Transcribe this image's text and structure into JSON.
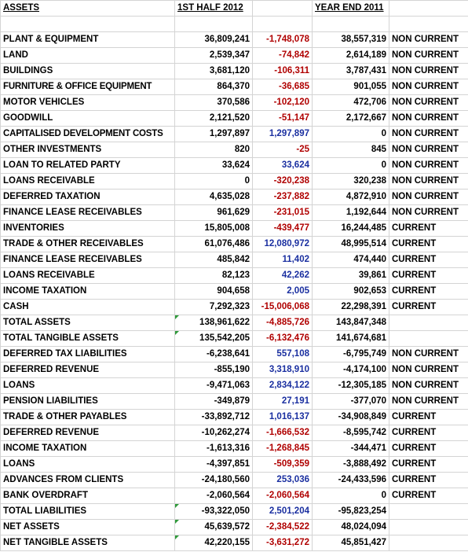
{
  "header": {
    "label": "ASSETS",
    "h1": "1ST HALF 2012",
    "change": "",
    "ye": "YEAR END 2011",
    "cls": ""
  },
  "rows": [
    {
      "label": "PLANT & EQUIPMENT",
      "h1": "36,809,241",
      "change": "-1,748,078",
      "ye": "38,557,319",
      "cls": "NON CURRENT",
      "tone": "neg"
    },
    {
      "label": "LAND",
      "h1": "2,539,347",
      "change": "-74,842",
      "ye": "2,614,189",
      "cls": "NON CURRENT",
      "tone": "neg"
    },
    {
      "label": "BUILDINGS",
      "h1": "3,681,120",
      "change": "-106,311",
      "ye": "3,787,431",
      "cls": "NON CURRENT",
      "tone": "neg"
    },
    {
      "label": "FURNITURE & OFFICE EQUIPMENT",
      "h1": "864,370",
      "change": "-36,685",
      "ye": "901,055",
      "cls": "NON CURRENT",
      "tone": "neg"
    },
    {
      "label": "MOTOR VEHICLES",
      "h1": "370,586",
      "change": "-102,120",
      "ye": "472,706",
      "cls": "NON CURRENT",
      "tone": "neg"
    },
    {
      "label": "GOODWILL",
      "h1": "2,121,520",
      "change": "-51,147",
      "ye": "2,172,667",
      "cls": "NON CURRENT",
      "tone": "neg"
    },
    {
      "label": "CAPITALISED DEVELOPMENT COSTS",
      "h1": "1,297,897",
      "change": "1,297,897",
      "ye": "0",
      "cls": "NON CURRENT",
      "tone": "pos"
    },
    {
      "label": "OTHER INVESTMENTS",
      "h1": "820",
      "change": "-25",
      "ye": "845",
      "cls": "NON CURRENT",
      "tone": "neg"
    },
    {
      "label": "LOAN TO RELATED PARTY",
      "h1": "33,624",
      "change": "33,624",
      "ye": "0",
      "cls": "NON CURRENT",
      "tone": "pos"
    },
    {
      "label": "LOANS RECEIVABLE",
      "h1": "0",
      "change": "-320,238",
      "ye": "320,238",
      "cls": "NON CURRENT",
      "tone": "neg"
    },
    {
      "label": "DEFERRED TAXATION",
      "h1": "4,635,028",
      "change": "-237,882",
      "ye": "4,872,910",
      "cls": "NON CURRENT",
      "tone": "neg"
    },
    {
      "label": "FINANCE LEASE RECEIVABLES",
      "h1": "961,629",
      "change": "-231,015",
      "ye": "1,192,644",
      "cls": "NON CURRENT",
      "tone": "neg"
    },
    {
      "label": "INVENTORIES",
      "h1": "15,805,008",
      "change": "-439,477",
      "ye": "16,244,485",
      "cls": "CURRENT",
      "tone": "neg"
    },
    {
      "label": "TRADE & OTHER RECEIVABLES",
      "h1": "61,076,486",
      "change": "12,080,972",
      "ye": "48,995,514",
      "cls": "CURRENT",
      "tone": "pos"
    },
    {
      "label": "FINANCE LEASE RECEIVABLES",
      "h1": "485,842",
      "change": "11,402",
      "ye": "474,440",
      "cls": "CURRENT",
      "tone": "pos"
    },
    {
      "label": "LOANS RECEIVABLE",
      "h1": "82,123",
      "change": "42,262",
      "ye": "39,861",
      "cls": "CURRENT",
      "tone": "pos"
    },
    {
      "label": "INCOME TAXATION",
      "h1": "904,658",
      "change": "2,005",
      "ye": "902,653",
      "cls": "CURRENT",
      "tone": "pos"
    },
    {
      "label": "CASH",
      "h1": "7,292,323",
      "change": "-15,006,068",
      "ye": "22,298,391",
      "cls": "CURRENT",
      "tone": "neg"
    },
    {
      "label": "TOTAL ASSETS",
      "h1": "138,961,622",
      "change": "-4,885,726",
      "ye": "143,847,348",
      "cls": "",
      "tone": "neg",
      "flag": true
    },
    {
      "label": "TOTAL TANGIBLE ASSETS",
      "h1": "135,542,205",
      "change": "-6,132,476",
      "ye": "141,674,681",
      "cls": "",
      "tone": "neg",
      "flag": true
    },
    {
      "label": "DEFERRED TAX LIABILITIES",
      "h1": "-6,238,641",
      "change": "557,108",
      "ye": "-6,795,749",
      "cls": "NON CURRENT",
      "tone": "pos"
    },
    {
      "label": "DEFERRED REVENUE",
      "h1": "-855,190",
      "change": "3,318,910",
      "ye": "-4,174,100",
      "cls": "NON CURRENT",
      "tone": "pos"
    },
    {
      "label": "LOANS",
      "h1": "-9,471,063",
      "change": "2,834,122",
      "ye": "-12,305,185",
      "cls": "NON CURRENT",
      "tone": "pos"
    },
    {
      "label": "PENSION LIABILITIES",
      "h1": "-349,879",
      "change": "27,191",
      "ye": "-377,070",
      "cls": "NON CURRENT",
      "tone": "pos"
    },
    {
      "label": "TRADE & OTHER PAYABLES",
      "h1": "-33,892,712",
      "change": "1,016,137",
      "ye": "-34,908,849",
      "cls": "CURRENT",
      "tone": "pos"
    },
    {
      "label": "DEFERRED REVENUE",
      "h1": "-10,262,274",
      "change": "-1,666,532",
      "ye": "-8,595,742",
      "cls": "CURRENT",
      "tone": "neg"
    },
    {
      "label": "INCOME TAXATION",
      "h1": "-1,613,316",
      "change": "-1,268,845",
      "ye": "-344,471",
      "cls": "CURRENT",
      "tone": "neg"
    },
    {
      "label": "LOANS",
      "h1": "-4,397,851",
      "change": "-509,359",
      "ye": "-3,888,492",
      "cls": "CURRENT",
      "tone": "neg"
    },
    {
      "label": "ADVANCES FROM CLIENTS",
      "h1": "-24,180,560",
      "change": "253,036",
      "ye": "-24,433,596",
      "cls": "CURRENT",
      "tone": "pos"
    },
    {
      "label": "BANK OVERDRAFT",
      "h1": "-2,060,564",
      "change": "-2,060,564",
      "ye": "0",
      "cls": "CURRENT",
      "tone": "neg"
    },
    {
      "label": "TOTAL LIABILITIES",
      "h1": "-93,322,050",
      "change": "2,501,204",
      "ye": "-95,823,254",
      "cls": "",
      "tone": "pos",
      "flag": true
    },
    {
      "label": "NET ASSETS",
      "h1": "45,639,572",
      "change": "-2,384,522",
      "ye": "48,024,094",
      "cls": "",
      "tone": "neg",
      "flag": true
    },
    {
      "label": "NET TANGIBLE ASSETS",
      "h1": "42,220,155",
      "change": "-3,631,272",
      "ye": "45,851,427",
      "cls": "",
      "tone": "neg",
      "flag": true
    }
  ],
  "colors": {
    "negative": "#b00000",
    "positive": "#1a2fa0",
    "gridline": "#d4d4d4",
    "error_indicator": "#2f9a3a"
  }
}
